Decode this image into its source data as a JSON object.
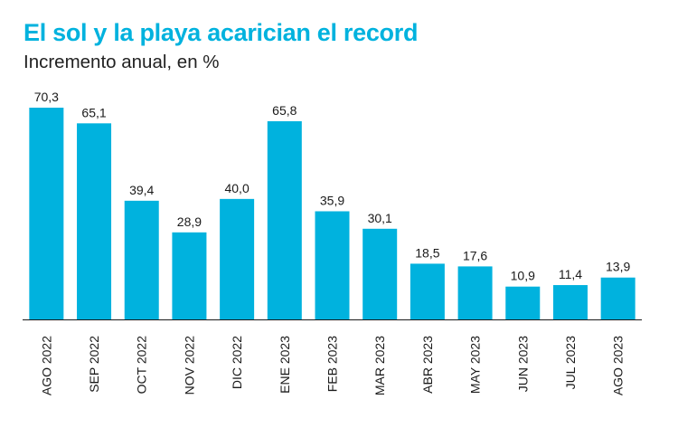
{
  "chart_data": {
    "type": "bar",
    "title": "El sol y la playa acarician el record",
    "subtitle": "Incremento anual, en %",
    "categories": [
      "AGO 2022",
      "SEP 2022",
      "OCT 2022",
      "NOV 2022",
      "DIC 2022",
      "ENE 2023",
      "FEB 2023",
      "MAR 2023",
      "ABR 2023",
      "MAY 2023",
      "JUN 2023",
      "JUL 2023",
      "AGO 2023"
    ],
    "values": [
      70.3,
      65.1,
      39.4,
      28.9,
      40.0,
      65.8,
      35.9,
      30.1,
      18.5,
      17.6,
      10.9,
      11.4,
      13.9
    ],
    "value_labels": [
      "70,3",
      "65,1",
      "39,4",
      "28,9",
      "40,0",
      "65,8",
      "35,9",
      "30,1",
      "18,5",
      "17,6",
      "10,9",
      "11,4",
      "13,9"
    ],
    "ylim": [
      0,
      70.3
    ],
    "grid": false,
    "legend": "none"
  },
  "colors": {
    "title": "#00b2de",
    "bar": "#00b2de",
    "axis": "#1a1a1a",
    "text": "#1a1a1a"
  }
}
